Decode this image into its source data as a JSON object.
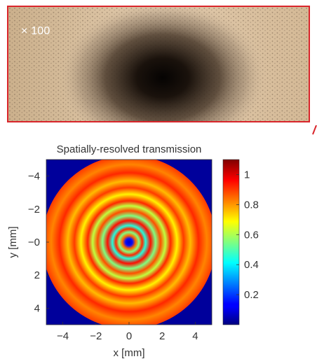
{
  "micrograph": {
    "magnification": "× 100",
    "border_color": "#d9252b"
  },
  "chart_data": {
    "type": "heatmap",
    "title": "Spatially-resolved transmission",
    "xlabel": "x [mm]",
    "ylabel": "y [mm]",
    "xlim": [
      -5,
      5
    ],
    "ylim": [
      -5,
      5
    ],
    "y_axis_inverted": true,
    "x_ticks": [
      -4,
      -2,
      0,
      2,
      4
    ],
    "x_tick_labels": [
      "−4",
      "−2",
      "0",
      "2",
      "4"
    ],
    "y_ticks": [
      -4,
      -2,
      0,
      2,
      4
    ],
    "y_tick_labels": [
      "−4",
      "−2",
      "−0",
      "2",
      "4"
    ],
    "aperture_radius_mm": 5.25,
    "outside_value": 0.03,
    "colorbar": {
      "colormap": "jet",
      "range": [
        0,
        1.1
      ],
      "ticks": [
        1,
        0.8,
        0.6,
        0.4,
        0.2
      ],
      "tick_labels": [
        "1",
        "0.8",
        "0.6",
        "0.4",
        "0.2"
      ]
    },
    "radial_profile": {
      "r_mm": [
        0,
        0.2,
        0.4,
        0.6,
        0.8,
        1.0,
        1.3,
        1.6,
        1.9,
        2.2,
        2.5,
        2.9,
        3.3,
        3.7,
        4.2,
        4.7,
        5.25
      ],
      "transmission": [
        0.08,
        0.15,
        0.85,
        0.55,
        0.92,
        0.45,
        0.95,
        0.55,
        0.88,
        0.62,
        0.92,
        0.7,
        0.9,
        0.76,
        0.92,
        0.82,
        0.9
      ]
    }
  }
}
